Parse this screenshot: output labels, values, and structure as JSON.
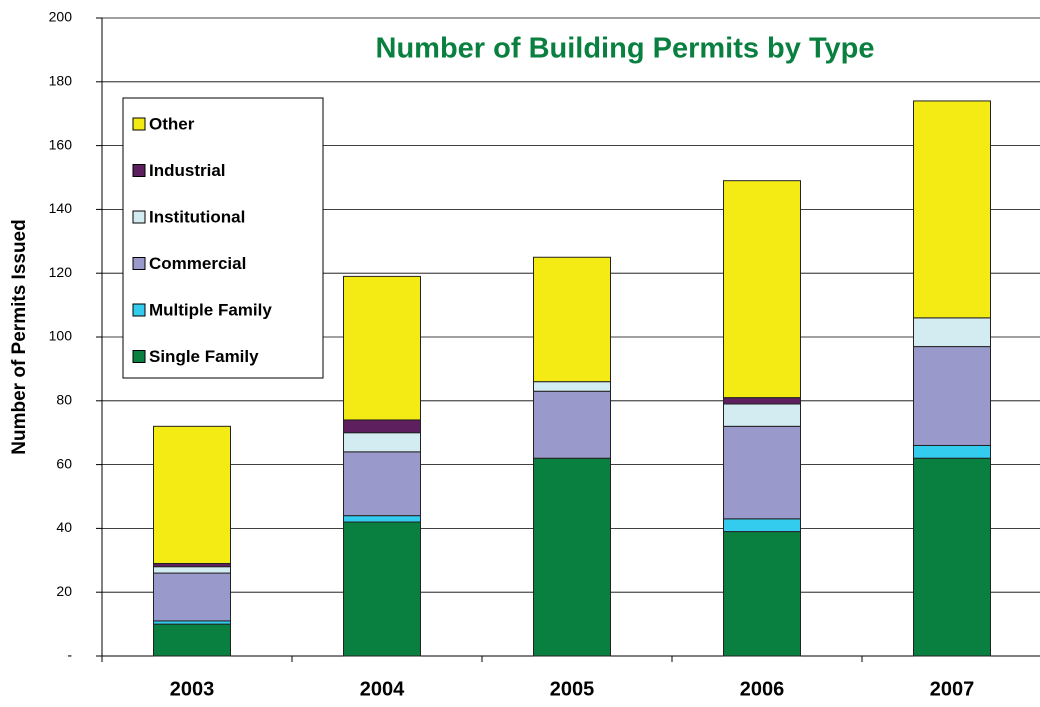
{
  "chart_data": {
    "type": "stacked_bar",
    "title": "Number of Building Permits by Type",
    "y_label": "Number of Permits Issued",
    "categories": [
      "2003",
      "2004",
      "2005",
      "2006",
      "2007"
    ],
    "series": [
      {
        "name": "Single Family",
        "color": "#0a8040",
        "values": [
          10,
          42,
          62,
          39,
          62
        ]
      },
      {
        "name": "Multiple Family",
        "color": "#33ccee",
        "values": [
          1,
          2,
          0,
          4,
          4
        ]
      },
      {
        "name": "Commercial",
        "color": "#9999cc",
        "values": [
          15,
          20,
          21,
          29,
          31
        ]
      },
      {
        "name": "Institutional",
        "color": "#d3ecf2",
        "values": [
          2,
          6,
          3,
          7,
          9
        ]
      },
      {
        "name": "Industrial",
        "color": "#5e1f5e",
        "values": [
          1,
          4,
          0,
          2,
          0
        ]
      },
      {
        "name": "Other",
        "color": "#f5eb14",
        "values": [
          43,
          45,
          39,
          68,
          68
        ]
      }
    ],
    "ylim": [
      0,
      200
    ],
    "yticks": [
      {
        "value": 0,
        "label": "-"
      },
      20,
      40,
      60,
      80,
      100,
      120,
      140,
      160,
      180,
      200
    ],
    "grid": true,
    "legend": "upper left"
  }
}
